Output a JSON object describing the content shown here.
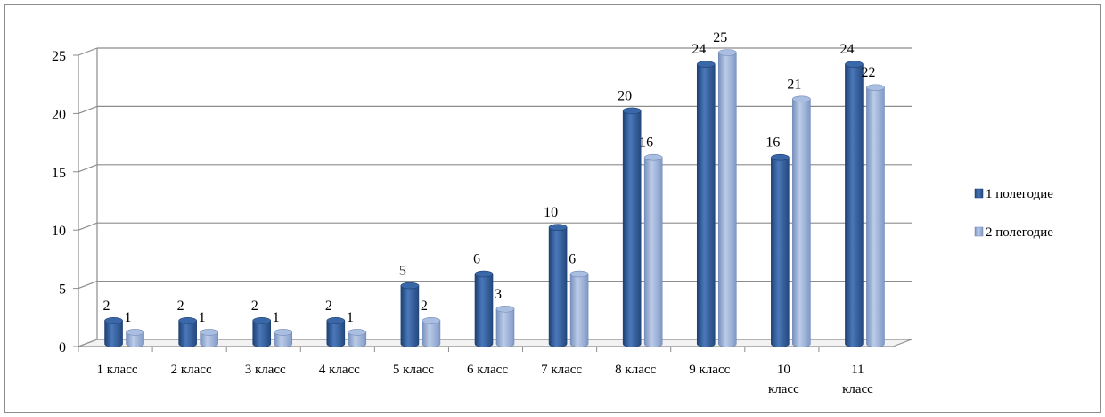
{
  "chart_data": {
    "type": "bar",
    "categories": [
      "1 класс",
      "2 класс",
      "3 класс",
      "4 класс",
      "5 класс",
      "6 класс",
      "7 класс",
      "8 класс",
      "9 класс",
      "10 класс",
      "11 класс"
    ],
    "series": [
      {
        "name": "1 полегодие",
        "color": "#2F5C9A",
        "values": [
          2,
          2,
          2,
          2,
          5,
          6,
          10,
          20,
          24,
          16,
          24
        ]
      },
      {
        "name": "2 полегодие",
        "color": "#93ACD6",
        "values": [
          1,
          1,
          1,
          1,
          2,
          3,
          6,
          16,
          25,
          21,
          22
        ]
      }
    ],
    "ylim": [
      0,
      25
    ],
    "yticks": [
      0,
      5,
      10,
      15,
      20,
      25
    ],
    "grid": true,
    "style": "3d-cylinder",
    "legend": "right"
  }
}
